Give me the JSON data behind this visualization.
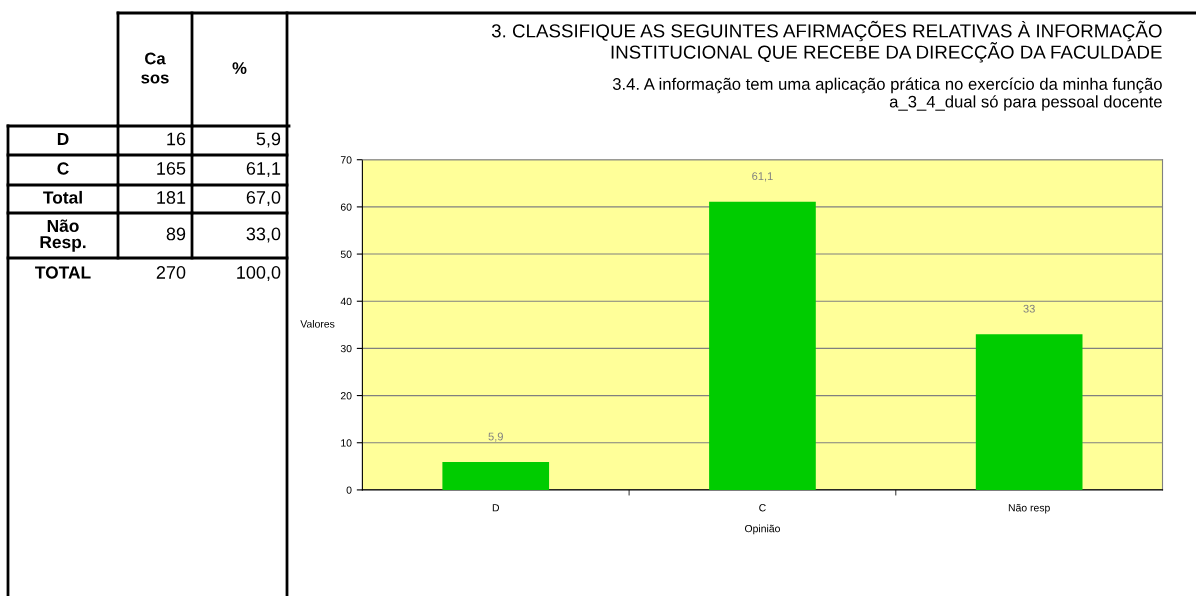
{
  "chart_data": [
    {
      "type": "other",
      "categories": [
        "D",
        "C",
        "Total",
        "Não\nResp.",
        "TOTAL"
      ],
      "series": [
        {
          "name": "Ca\nsos",
          "values": [
            16,
            165,
            181,
            89,
            270
          ],
          "value_labels": [
            "16",
            "165",
            "181",
            "89",
            "270"
          ]
        },
        {
          "name": "%",
          "values": [
            5.9,
            61.1,
            67.0,
            33.0,
            100.0
          ],
          "value_labels": [
            "5,9",
            "61,1",
            "67,0",
            "33,0",
            "100,0"
          ]
        }
      ]
    },
    {
      "type": "bar",
      "title": "3. CLASSIFIQUE AS SEGUINTES AFIRMAÇÕES RELATIVAS À INFORMAÇÃO\nINSTITUCIONAL QUE RECEBE DA DIRECÇÃO DA FACULDADE",
      "subtitle": "3.4. A informação tem uma aplicação prática no exercício da minha função\na_3_4_dual só para pessoal docente",
      "xlabel": "Opinião",
      "ylabel": "Valores",
      "categories": [
        "D",
        "C",
        "Não resp"
      ],
      "series": [
        {
          "color": "#00cc00",
          "values": [
            5.9,
            61.1,
            33
          ],
          "value_labels": [
            "5,9",
            "61,1",
            "33"
          ]
        }
      ],
      "ylim": [
        0,
        70
      ],
      "yticks": [
        0,
        10,
        20,
        30,
        40,
        50,
        60,
        70
      ],
      "grid": "y",
      "legend": false
    }
  ]
}
